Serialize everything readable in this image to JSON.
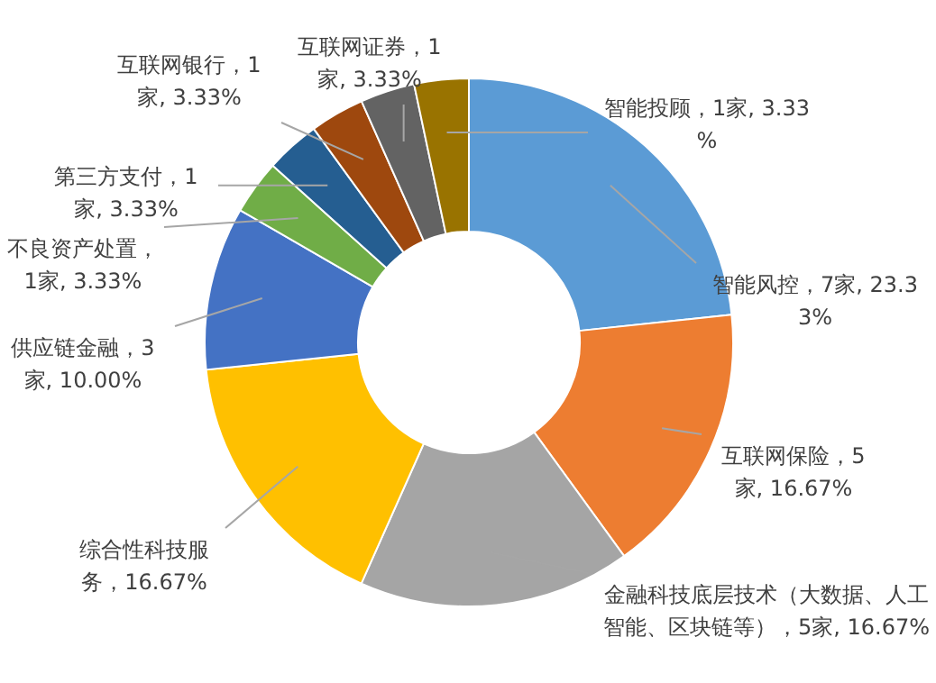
{
  "chart_data": {
    "type": "donut",
    "categories": [
      "智能风控",
      "互联网保险",
      "金融科技底层技术（大数据、人工智能、区块链等）",
      "综合性科技服务",
      "供应链金融",
      "不良资产处置",
      "第三方支付",
      "互联网银行",
      "互联网证券",
      "智能投顾"
    ],
    "values": [
      23.33,
      16.67,
      16.67,
      16.67,
      10.0,
      3.33,
      3.33,
      3.33,
      3.33,
      3.33
    ],
    "colors": [
      "#5b9bd5",
      "#ed7d31",
      "#a5a5a5",
      "#ffc000",
      "#4472c4",
      "#70ad47",
      "#255e91",
      "#9e480e",
      "#636363",
      "#997300"
    ],
    "value_labels": [
      "，7家, 23.33%",
      "，5家, 16.67%",
      "，5家, 16.67%",
      "，16.67%",
      "，3家, 10.00%",
      "，1家, 3.33%",
      "，1家, 3.33%",
      "，1家, 3.33%",
      "，1家, 3.33%",
      "，1家, 3.33%"
    ],
    "legend": false
  }
}
